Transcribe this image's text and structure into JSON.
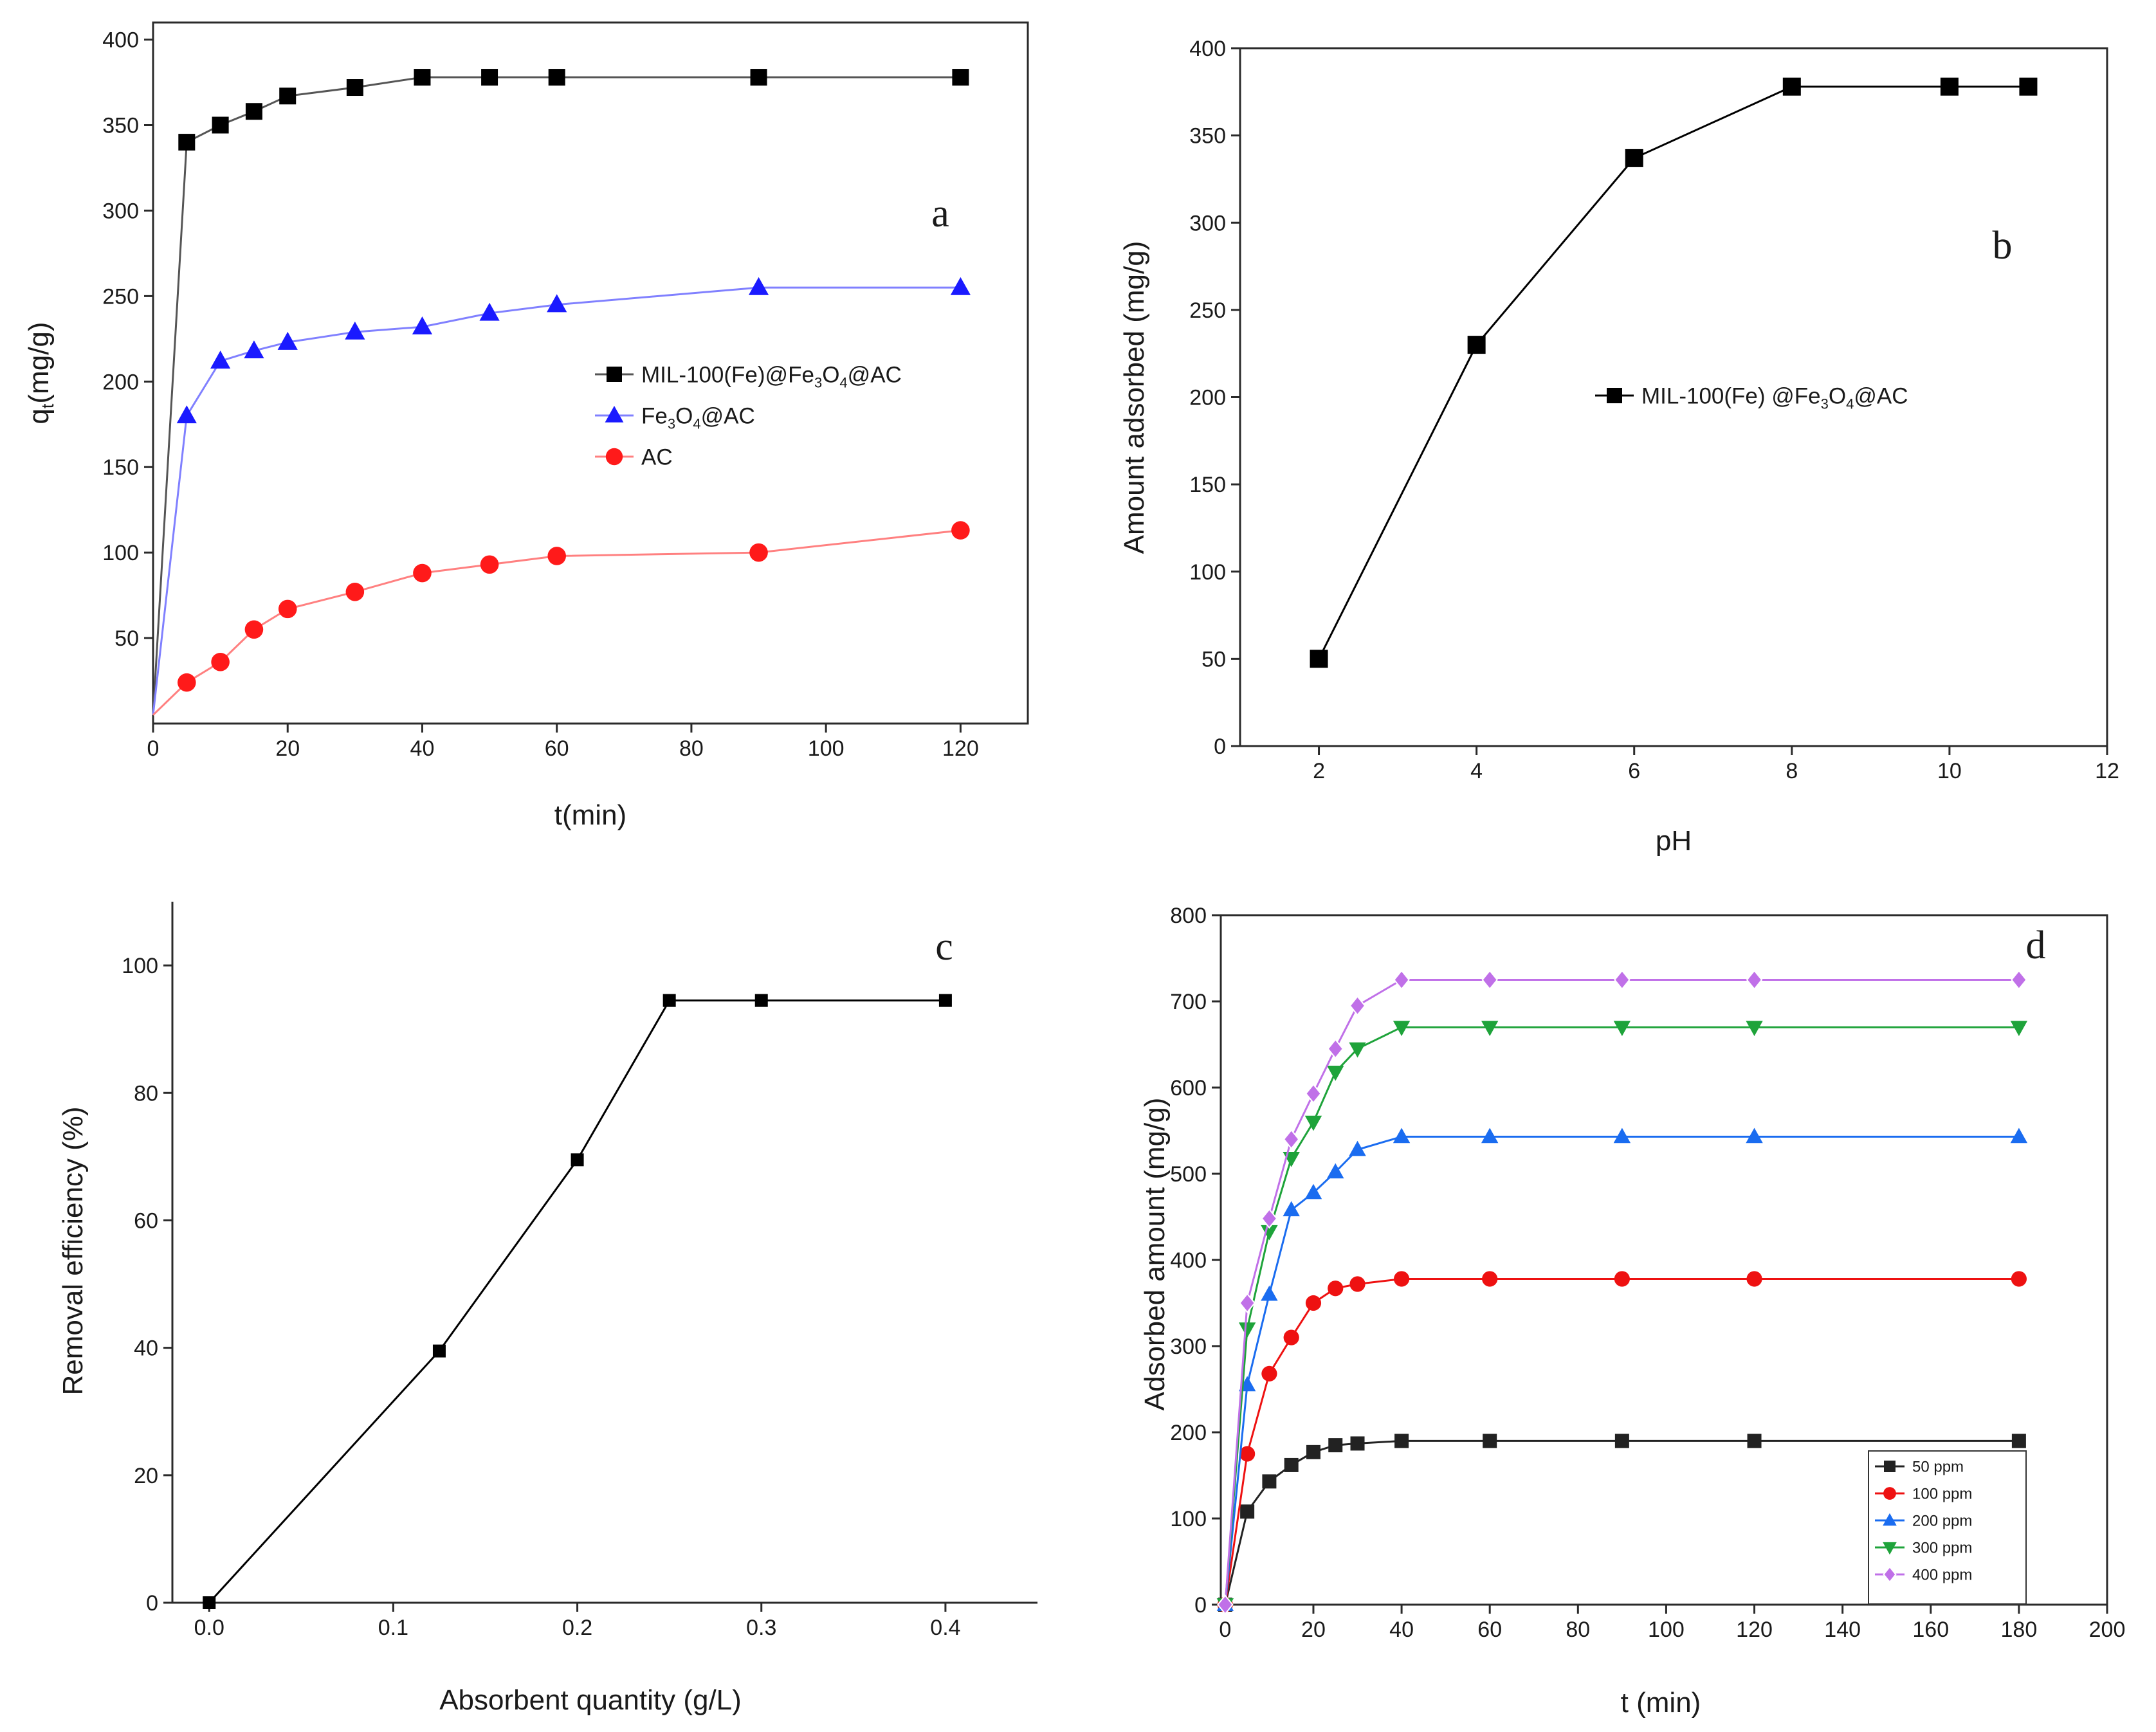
{
  "chart_data": [
    {
      "panel": "a",
      "type": "line",
      "panel_label": "a",
      "xlabel": "t(min)",
      "ylabel": "q",
      "ylabel_sub": "t",
      "ylabel_rest": "(mg/g)",
      "xlim": [
        0,
        130
      ],
      "ylim": [
        0,
        410
      ],
      "xticks": [
        0,
        20,
        40,
        60,
        80,
        100,
        120
      ],
      "yticks": [
        50,
        100,
        150,
        200,
        250,
        300,
        350,
        400
      ],
      "legend_position": "center-right",
      "series": [
        {
          "name": "MIL-100(Fe)@Fe3O4@AC",
          "legend": [
            "MIL-100(Fe)@Fe",
            "3",
            "O",
            "4",
            "@AC"
          ],
          "color": "#000000",
          "line": "#555555",
          "marker": "square",
          "start": [
            0,
            5
          ],
          "x": [
            5,
            10,
            15,
            20,
            30,
            40,
            50,
            60,
            90,
            120
          ],
          "y": [
            340,
            350,
            358,
            367,
            372,
            378,
            378,
            378,
            378,
            378
          ]
        },
        {
          "name": "Fe3O4@AC",
          "legend": [
            "Fe",
            "3",
            "O",
            "4",
            "@AC"
          ],
          "color": "#1a1aff",
          "line": "#8080ff",
          "marker": "triangle",
          "start": [
            0,
            5
          ],
          "x": [
            5,
            10,
            15,
            20,
            30,
            40,
            50,
            60,
            90,
            120
          ],
          "y": [
            180,
            212,
            218,
            223,
            229,
            232,
            240,
            245,
            255,
            255
          ]
        },
        {
          "name": "AC",
          "legend": [
            "AC"
          ],
          "color": "#ff1a1a",
          "line": "#ff8080",
          "marker": "circle",
          "start": [
            0,
            5
          ],
          "x": [
            5,
            10,
            15,
            20,
            30,
            40,
            50,
            60,
            90,
            120
          ],
          "y": [
            24,
            36,
            55,
            67,
            77,
            88,
            93,
            98,
            100,
            113
          ]
        }
      ]
    },
    {
      "panel": "b",
      "type": "line",
      "panel_label": "b",
      "xlabel": "pH",
      "ylabel": "Amount adsorbed (mg/g)",
      "xlim": [
        1,
        12
      ],
      "ylim": [
        0,
        400
      ],
      "xticks": [
        2,
        4,
        6,
        8,
        10,
        12
      ],
      "yticks": [
        0,
        50,
        100,
        150,
        200,
        250,
        300,
        350,
        400
      ],
      "legend_position": "center-right",
      "series": [
        {
          "name": "MIL-100(Fe) @Fe3O4@AC",
          "legend": [
            "MIL-100(Fe) @Fe",
            "3",
            "O",
            "4",
            "@AC"
          ],
          "color": "#000000",
          "line": "#000000",
          "marker": "square",
          "x": [
            2,
            4,
            6,
            8,
            10,
            11
          ],
          "y": [
            50,
            230,
            337,
            378,
            378,
            378
          ]
        }
      ]
    },
    {
      "panel": "c",
      "type": "line",
      "panel_label": "c",
      "xlabel": "Absorbent quantity  (g/L)",
      "ylabel": "Removal efficiency (%)",
      "xlim": [
        -0.02,
        0.45
      ],
      "ylim": [
        0,
        110
      ],
      "xticks": [
        0.0,
        0.1,
        0.2,
        0.3,
        0.4
      ],
      "xtick_labels": [
        "0.0",
        "0.1",
        "0.2",
        "0.3",
        "0.4"
      ],
      "yticks": [
        0,
        20,
        40,
        60,
        80,
        100
      ],
      "series": [
        {
          "name": "Removal efficiency",
          "color": "#000000",
          "line": "#000000",
          "marker": "square",
          "x": [
            0,
            0.125,
            0.2,
            0.25,
            0.3,
            0.4
          ],
          "y": [
            0,
            39.5,
            69.5,
            94.5,
            94.5,
            94.5
          ]
        }
      ]
    },
    {
      "panel": "d",
      "type": "line",
      "panel_label": "d",
      "xlabel": "t (min)",
      "ylabel": "Adsorbed amount (mg/g)",
      "xlim": [
        -1,
        200
      ],
      "ylim": [
        0,
        800
      ],
      "xticks": [
        0,
        20,
        40,
        60,
        80,
        100,
        120,
        140,
        160,
        180,
        200
      ],
      "yticks": [
        0,
        100,
        200,
        300,
        400,
        500,
        600,
        700,
        800
      ],
      "legend_position": "bottom-right",
      "series": [
        {
          "name": "50 ppm",
          "color": "#222222",
          "line": "#222222",
          "marker": "square",
          "x": [
            0,
            5,
            10,
            15,
            20,
            25,
            30,
            40,
            60,
            90,
            120,
            180
          ],
          "y": [
            0,
            108,
            143,
            162,
            177,
            185,
            187,
            190,
            190,
            190,
            190,
            190
          ]
        },
        {
          "name": "100 ppm",
          "color": "#ee1111",
          "line": "#ee1111",
          "marker": "circle",
          "x": [
            0,
            5,
            10,
            15,
            20,
            25,
            30,
            40,
            60,
            90,
            120,
            180
          ],
          "y": [
            0,
            175,
            268,
            310,
            350,
            367,
            372,
            378,
            378,
            378,
            378,
            378
          ]
        },
        {
          "name": "200 ppm",
          "color": "#1a6cf0",
          "line": "#1a6cf0",
          "marker": "triangle",
          "x": [
            0,
            5,
            10,
            15,
            20,
            25,
            30,
            40,
            60,
            90,
            120,
            180
          ],
          "y": [
            0,
            255,
            360,
            458,
            478,
            502,
            528,
            543,
            543,
            543,
            543,
            543
          ]
        },
        {
          "name": "300 ppm",
          "color": "#1ea33a",
          "line": "#1ea33a",
          "marker": "triangle-down",
          "x": [
            0,
            5,
            10,
            15,
            20,
            25,
            30,
            40,
            60,
            90,
            120,
            180
          ],
          "y": [
            0,
            320,
            433,
            518,
            560,
            618,
            645,
            670,
            670,
            670,
            670,
            670
          ]
        },
        {
          "name": "400 ppm",
          "color": "#c070e8",
          "line": "#c070e8",
          "marker": "diamond",
          "x": [
            0,
            5,
            10,
            15,
            20,
            25,
            30,
            40,
            60,
            90,
            120,
            180
          ],
          "y": [
            0,
            350,
            448,
            540,
            593,
            645,
            695,
            725,
            725,
            725,
            725,
            725
          ]
        }
      ]
    }
  ]
}
